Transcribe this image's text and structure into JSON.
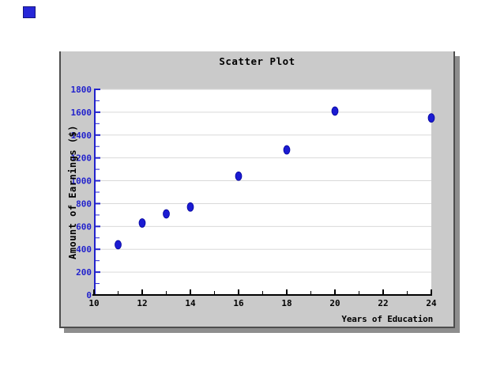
{
  "page": {
    "background": "#ffffff"
  },
  "marker": {
    "color": "#2727d8",
    "border_color": "#15157e"
  },
  "panel": {
    "background": "#cacaca",
    "border_color": "#4d4d4d",
    "shadow_color": "#8e8e8e"
  },
  "chart_data": {
    "type": "scatter",
    "title": "Scatter Plot",
    "xlabel": "Years of Education",
    "ylabel": "Amount of Earnings ($)",
    "points": [
      {
        "x": 11,
        "y": 440
      },
      {
        "x": 12,
        "y": 630
      },
      {
        "x": 13,
        "y": 710
      },
      {
        "x": 14,
        "y": 770
      },
      {
        "x": 16,
        "y": 1040
      },
      {
        "x": 18,
        "y": 1270
      },
      {
        "x": 20,
        "y": 1610
      },
      {
        "x": 24,
        "y": 1550
      }
    ],
    "xlim": [
      10,
      24
    ],
    "ylim": [
      0,
      1800
    ],
    "xticks_major": [
      10,
      12,
      14,
      16,
      18,
      20,
      22,
      24
    ],
    "xticks_minor": [
      11,
      13,
      15,
      17,
      19,
      21,
      23
    ],
    "yticks_major": [
      0,
      200,
      400,
      600,
      800,
      1000,
      1200,
      1400,
      1600,
      1800
    ],
    "yticks_minor": [
      100,
      300,
      500,
      700,
      900,
      1100,
      1300,
      1500,
      1700
    ],
    "grid": "horizontal-only",
    "legend": "none",
    "plot_background": "#ffffff",
    "gridline_color": "#d9d9d9",
    "y_axis_color": "#2222cc",
    "y_tick_label_color": "#2222cc",
    "x_axis_color": "#000000",
    "x_tick_label_color": "#000000",
    "point_color": "#1b1bd2",
    "point_outline_color": "#000099"
  }
}
